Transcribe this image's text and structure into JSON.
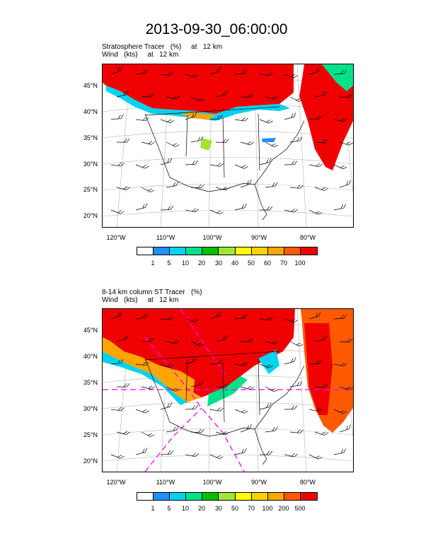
{
  "title": "2013-09-30_06:00:00",
  "colors": {
    "scale": [
      "#ffffff",
      "#1e90ff",
      "#00d2f0",
      "#00e18c",
      "#00c000",
      "#a0e632",
      "#ffff00",
      "#ffd200",
      "#ffa500",
      "#ff5a00",
      "#f00000"
    ],
    "tracer_red": "#f00000",
    "map_lines": "#000000",
    "grid": "#b4b4b4",
    "dashed_contour": "#ff00ff"
  },
  "panels": [
    {
      "subtitle_line1": "Stratosphere Tracer   (%)     at   12 km",
      "subtitle_line2": "Wind   (kts)     at   12 km",
      "lat_labels": [
        "45°N",
        "40°N",
        "35°N",
        "30°N",
        "25°N",
        "20°N"
      ],
      "lon_labels": [
        "120°W",
        "110°W",
        "100°W",
        "90°W",
        "80°W"
      ],
      "colorbar_labels": [
        "1",
        "5",
        "10",
        "20",
        "30",
        "40",
        "50",
        "60",
        "70",
        "100"
      ]
    },
    {
      "subtitle_line1": "8-14 km column ST Tracer   (%)",
      "subtitle_line2": "Wind   (kts)     at   12 km",
      "lat_labels": [
        "45°N",
        "40°N",
        "35°N",
        "30°N",
        "25°N",
        "20°N"
      ],
      "lon_labels": [
        "120°W",
        "110°W",
        "100°W",
        "90°W",
        "80°W"
      ],
      "colorbar_labels": [
        "1",
        "5",
        "10",
        "20",
        "30",
        "50",
        "70",
        "100",
        "200",
        "500"
      ]
    }
  ]
}
